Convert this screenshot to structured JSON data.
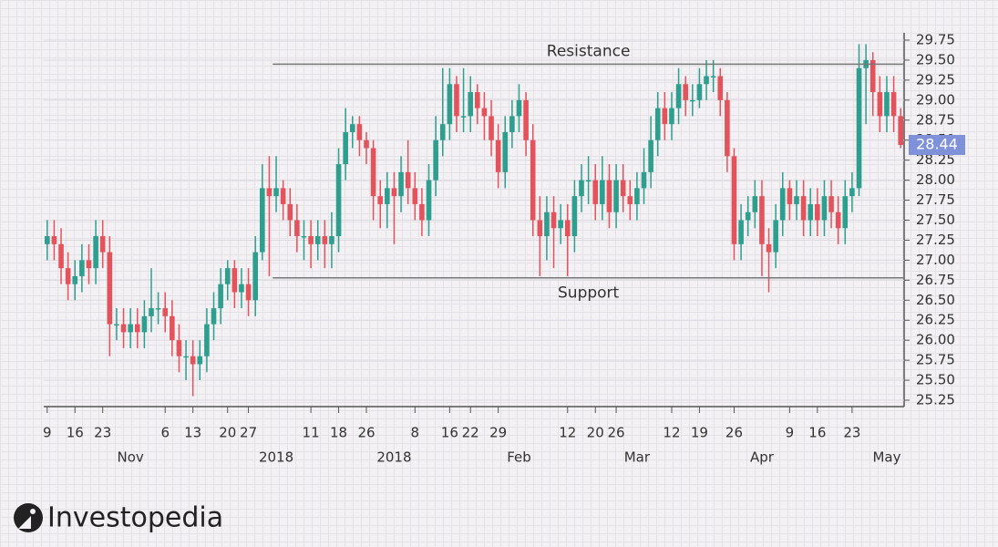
{
  "chart_data": {
    "type": "candlestick",
    "up_color": "#2e9e8e",
    "down_color": "#e2535c",
    "ylim": [
      25.25,
      29.75
    ],
    "yticks": [
      25.25,
      {
        "value": 25.5,
        "label": "25.50"
      },
      25.75,
      {
        "value": 26,
        "label": "26.00"
      },
      26.25,
      {
        "value": 26.5,
        "label": "26.50"
      },
      26.75,
      {
        "value": 27,
        "label": "27.00"
      },
      27.25,
      {
        "value": 27.5,
        "label": "27.50"
      },
      27.75,
      {
        "value": 28,
        "label": "28.00"
      },
      28.25,
      {
        "value": 28.5,
        "label": "28.50"
      },
      28.75,
      {
        "value": 29,
        "label": "29.00"
      },
      29.25,
      {
        "value": 29.5,
        "label": "29.50"
      },
      29.75
    ],
    "xticks": [
      {
        "value": 0,
        "label": "9"
      },
      {
        "value": 4,
        "label": "16"
      },
      {
        "value": 8,
        "label": "23"
      },
      {
        "value": 17,
        "label": "6"
      },
      {
        "value": 21,
        "label": "13"
      },
      {
        "value": 26,
        "label": "20"
      },
      {
        "value": 29,
        "label": "27"
      },
      {
        "value": 38,
        "label": "11"
      },
      {
        "value": 42,
        "label": "18"
      },
      {
        "value": 46,
        "label": "26"
      },
      {
        "value": 53,
        "label": "8"
      },
      {
        "value": 58,
        "label": "16"
      },
      {
        "value": 61,
        "label": "22"
      },
      {
        "value": 65,
        "label": "29"
      },
      {
        "value": 75,
        "label": "12"
      },
      {
        "value": 79,
        "label": "20"
      },
      {
        "value": 82,
        "label": "26"
      },
      {
        "value": 90,
        "label": "12"
      },
      {
        "value": 94,
        "label": "19"
      },
      {
        "value": 99,
        "label": "26"
      },
      {
        "value": 107,
        "label": "9"
      },
      {
        "value": 111,
        "label": "16"
      },
      {
        "value": 116,
        "label": "23"
      }
    ],
    "xsublabels": [
      {
        "value": 12,
        "label": "Nov"
      },
      {
        "value": 33,
        "label": "2018"
      },
      {
        "value": 50,
        "label": "2018"
      },
      {
        "value": 68,
        "label": "Feb"
      },
      {
        "value": 85,
        "label": "Mar"
      },
      {
        "value": 103,
        "label": "Apr"
      },
      {
        "value": 121,
        "label": "May"
      }
    ],
    "annotations": [
      {
        "label": "Resistance",
        "value": 29.45,
        "from": 33,
        "side": "above"
      },
      {
        "label": "Support",
        "value": 26.78,
        "from": 33,
        "side": "below"
      }
    ],
    "open": [
      27.2,
      27.3,
      27.2,
      26.9,
      26.7,
      26.8,
      27.0,
      26.9,
      27.3,
      27.1,
      26.2,
      26.2,
      26.1,
      26.2,
      26.1,
      26.3,
      26.4,
      26.4,
      26.3,
      26.0,
      25.8,
      25.8,
      25.7,
      25.8,
      26.2,
      26.4,
      26.7,
      26.9,
      26.6,
      26.7,
      26.5,
      27.1,
      27.9,
      27.8,
      27.9,
      27.7,
      27.5,
      27.3,
      27.3,
      27.2,
      27.3,
      27.2,
      27.3,
      28.2,
      28.6,
      28.7,
      28.5,
      28.4,
      27.8,
      27.7,
      27.9,
      27.8,
      28.1,
      27.9,
      27.7,
      27.5,
      28.0,
      28.5,
      28.7,
      29.2,
      28.8,
      28.8,
      29.1,
      28.9,
      28.8,
      28.5,
      28.1,
      28.6,
      28.8,
      29.0,
      28.5,
      27.5,
      27.3,
      27.6,
      27.4,
      27.5,
      27.3,
      27.8,
      28.0,
      28.0,
      27.7,
      28.0,
      27.6,
      28.0,
      27.8,
      27.7,
      27.9,
      28.1,
      28.5,
      28.9,
      28.7,
      28.9,
      29.2,
      29.0,
      29.0,
      29.2,
      29.3,
      29.3,
      29.0,
      28.3,
      27.2,
      27.5,
      27.6,
      27.8,
      27.2,
      27.1,
      27.5,
      27.9,
      27.7,
      27.8,
      27.5,
      27.7,
      27.5,
      27.8,
      27.6,
      27.4,
      27.8,
      27.9,
      29.4,
      29.5,
      29.1,
      28.8,
      29.1,
      28.8
    ],
    "close": [
      27.3,
      27.2,
      26.9,
      26.7,
      26.8,
      27.0,
      26.9,
      27.3,
      27.1,
      26.2,
      26.2,
      26.1,
      26.2,
      26.1,
      26.3,
      26.4,
      26.4,
      26.3,
      26.0,
      25.8,
      25.8,
      25.7,
      25.8,
      26.2,
      26.4,
      26.7,
      26.9,
      26.6,
      26.7,
      26.5,
      27.1,
      27.9,
      27.8,
      27.9,
      27.7,
      27.5,
      27.3,
      27.3,
      27.2,
      27.3,
      27.2,
      27.3,
      28.2,
      28.6,
      28.7,
      28.5,
      28.4,
      27.8,
      27.7,
      27.9,
      27.8,
      28.1,
      27.9,
      27.7,
      27.5,
      28.0,
      28.5,
      28.7,
      29.2,
      28.8,
      28.8,
      29.1,
      28.9,
      28.8,
      28.5,
      28.1,
      28.6,
      28.8,
      29.0,
      28.5,
      27.5,
      27.3,
      27.6,
      27.4,
      27.5,
      27.3,
      27.8,
      28.0,
      28.0,
      27.7,
      28.0,
      27.6,
      28.0,
      27.8,
      27.7,
      27.9,
      28.1,
      28.5,
      28.9,
      28.7,
      28.9,
      29.2,
      29.0,
      29.0,
      29.2,
      29.3,
      29.3,
      29.0,
      28.3,
      27.2,
      27.5,
      27.6,
      27.8,
      27.2,
      27.1,
      27.5,
      27.9,
      27.7,
      27.8,
      27.5,
      27.7,
      27.5,
      27.8,
      27.6,
      27.4,
      27.8,
      27.9,
      29.4,
      29.5,
      29.1,
      28.8,
      29.1,
      28.8,
      28.44
    ],
    "high": [
      27.5,
      27.5,
      27.4,
      27.1,
      27.0,
      27.2,
      27.2,
      27.5,
      27.5,
      27.3,
      26.4,
      26.4,
      26.4,
      26.4,
      26.5,
      26.9,
      26.6,
      26.6,
      26.5,
      26.2,
      26.0,
      26.0,
      26.0,
      26.4,
      26.6,
      26.9,
      27.0,
      27.0,
      26.9,
      26.9,
      27.3,
      28.2,
      28.3,
      28.3,
      28.0,
      27.9,
      27.7,
      27.5,
      27.5,
      27.5,
      27.5,
      27.6,
      28.4,
      28.9,
      28.8,
      28.8,
      28.6,
      28.5,
      28.0,
      28.1,
      28.1,
      28.3,
      28.5,
      28.1,
      27.9,
      28.2,
      28.8,
      29.4,
      29.4,
      29.3,
      29.4,
      29.3,
      29.2,
      29.1,
      29.0,
      28.7,
      28.8,
      29.0,
      29.2,
      29.1,
      28.7,
      27.8,
      27.8,
      27.8,
      27.7,
      27.7,
      28.0,
      28.2,
      28.3,
      28.2,
      28.3,
      28.2,
      28.2,
      28.2,
      28.0,
      28.1,
      28.4,
      28.8,
      29.1,
      29.1,
      29.1,
      29.4,
      29.3,
      29.2,
      29.4,
      29.5,
      29.5,
      29.4,
      29.1,
      28.4,
      27.7,
      27.8,
      28.0,
      28.0,
      27.4,
      27.7,
      28.1,
      28.0,
      28.0,
      28.0,
      27.9,
      27.9,
      28.0,
      28.0,
      27.8,
      28.0,
      28.1,
      29.7,
      29.7,
      29.6,
      29.3,
      29.3,
      29.3,
      28.9
    ],
    "low": [
      27.0,
      27.0,
      26.7,
      26.5,
      26.5,
      26.6,
      26.7,
      26.7,
      26.9,
      25.8,
      26.0,
      25.9,
      25.9,
      25.9,
      25.9,
      26.1,
      26.2,
      26.1,
      25.8,
      25.6,
      25.5,
      25.3,
      25.5,
      25.6,
      26.0,
      26.2,
      26.5,
      26.4,
      26.4,
      26.3,
      26.3,
      27.0,
      26.8,
      27.6,
      27.5,
      27.3,
      27.1,
      27.0,
      26.9,
      27.0,
      26.9,
      26.9,
      27.1,
      28.0,
      28.4,
      28.3,
      28.2,
      27.5,
      27.4,
      27.4,
      27.2,
      27.6,
      27.7,
      27.5,
      27.3,
      27.3,
      27.8,
      28.3,
      28.5,
      28.6,
      28.6,
      28.6,
      28.7,
      28.5,
      28.3,
      27.9,
      27.9,
      28.4,
      28.6,
      28.3,
      27.3,
      26.8,
      27.0,
      26.9,
      27.2,
      26.8,
      27.1,
      27.6,
      27.7,
      27.5,
      27.5,
      27.4,
      27.4,
      27.6,
      27.5,
      27.5,
      27.7,
      27.9,
      28.3,
      28.5,
      28.5,
      28.7,
      28.8,
      28.8,
      28.9,
      29.0,
      29.1,
      28.8,
      28.1,
      27.0,
      27.0,
      27.3,
      27.4,
      26.8,
      26.6,
      26.9,
      27.3,
      27.5,
      27.5,
      27.3,
      27.3,
      27.3,
      27.3,
      27.4,
      27.2,
      27.2,
      27.6,
      27.8,
      28.7,
      28.8,
      28.6,
      28.6,
      28.6,
      28.4
    ],
    "logo": "Investopedia"
  }
}
